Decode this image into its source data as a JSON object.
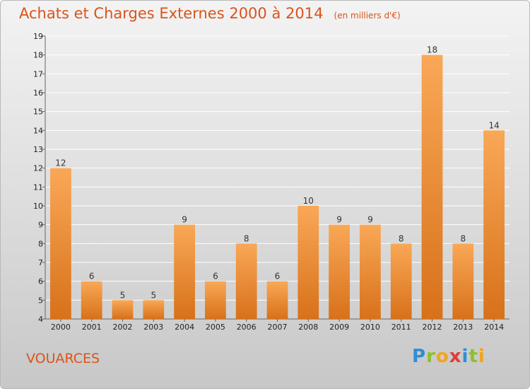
{
  "page": {
    "place_name": "VOUARCES",
    "logo": {
      "text": "Proxiti",
      "letters": [
        {
          "ch": "P",
          "color": "#2e8fd6"
        },
        {
          "ch": "r",
          "color": "#8fbf2d"
        },
        {
          "ch": "o",
          "color": "#f2a51b"
        },
        {
          "ch": "x",
          "color": "#e23a3a"
        },
        {
          "ch": "i",
          "color": "#2e8fd6"
        },
        {
          "ch": "t",
          "color": "#8fbf2d"
        },
        {
          "ch": "i",
          "color": "#f2a51b"
        }
      ]
    }
  },
  "chart_data": {
    "type": "bar",
    "title": "Achats et Charges Externes 2000 à 2014",
    "subtitle": "(en milliers d'€)",
    "xlabel": "",
    "ylabel": "",
    "categories": [
      "2000",
      "2001",
      "2002",
      "2003",
      "2004",
      "2005",
      "2006",
      "2007",
      "2008",
      "2009",
      "2010",
      "2011",
      "2012",
      "2013",
      "2014"
    ],
    "values": [
      12,
      6,
      5,
      5,
      9,
      6,
      8,
      6,
      10,
      9,
      9,
      8,
      18,
      8,
      14
    ],
    "ylim": [
      4,
      19
    ],
    "yticks": [
      4,
      5,
      6,
      7,
      8,
      9,
      10,
      11,
      12,
      13,
      14,
      15,
      16,
      17,
      18,
      19
    ],
    "grid": true,
    "legend": "none",
    "colors": {
      "bar_top": "#f9a857",
      "bar_bottom": "#d8711a",
      "accent": "#d9541b",
      "grid": "#ffffff"
    }
  }
}
